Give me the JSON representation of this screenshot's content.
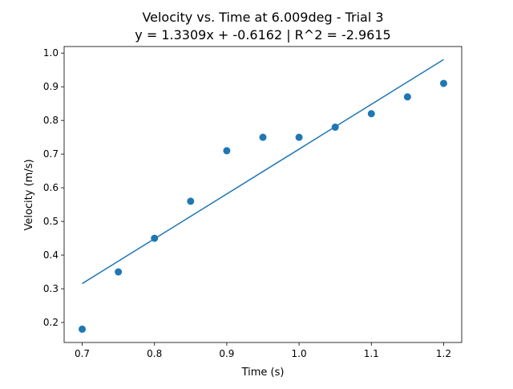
{
  "chart_data": {
    "type": "scatter",
    "title": "Velocity vs. Time at 6.009deg - Trial 3",
    "subtitle": "y = 1.3309x + -0.6162 | R^2 = -2.9615",
    "xlabel": "Time (s)",
    "ylabel": "Velocity (m/s)",
    "xlim": [
      0.675,
      1.225
    ],
    "ylim": [
      0.1405,
      1.0195
    ],
    "xticks": [
      0.7,
      0.8,
      0.9,
      1.0,
      1.1,
      1.2
    ],
    "xtick_labels": [
      "0.7",
      "0.8",
      "0.9",
      "1.0",
      "1.1",
      "1.2"
    ],
    "yticks": [
      0.2,
      0.3,
      0.4,
      0.5,
      0.6,
      0.7,
      0.8,
      0.9,
      1.0
    ],
    "ytick_labels": [
      "0.2",
      "0.3",
      "0.4",
      "0.5",
      "0.6",
      "0.7",
      "0.8",
      "0.9",
      "1.0"
    ],
    "grid": false,
    "color": "#1f77b4",
    "points": {
      "x": [
        0.7,
        0.75,
        0.8,
        0.85,
        0.9,
        0.95,
        1.0,
        1.05,
        1.1,
        1.15,
        1.2
      ],
      "y": [
        0.18,
        0.35,
        0.45,
        0.56,
        0.71,
        0.75,
        0.75,
        0.78,
        0.82,
        0.87,
        0.91
      ]
    },
    "fit_line": {
      "slope": 1.3309,
      "intercept": -0.6162,
      "x_range": [
        0.7,
        1.2
      ]
    }
  }
}
